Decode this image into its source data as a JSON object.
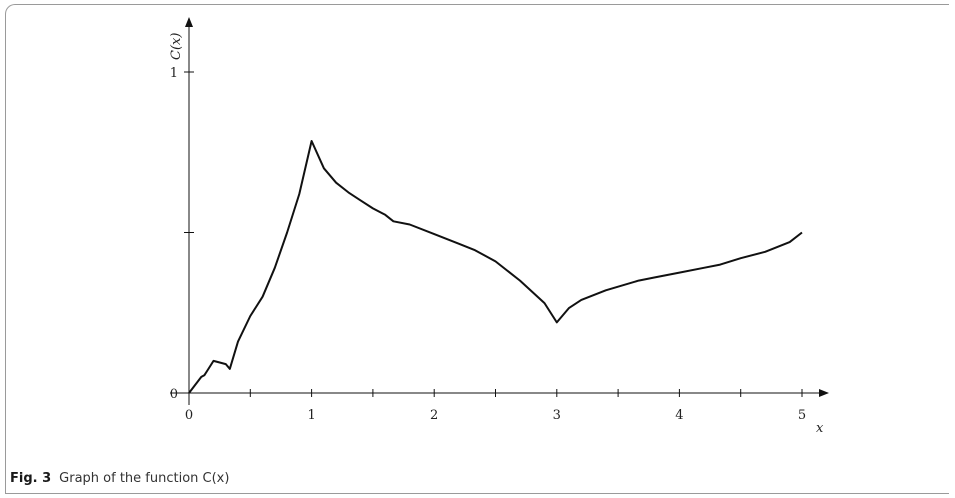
{
  "caption": {
    "figure_number": "Fig. 3",
    "text": "Graph of the function C(x)"
  },
  "chart_data": {
    "type": "line",
    "title": "",
    "xlabel": "x",
    "ylabel": "C(x)",
    "xlim": [
      0,
      5
    ],
    "ylim": [
      0,
      1
    ],
    "x_ticks": [
      0,
      0.5,
      1,
      1.5,
      2,
      2.5,
      3,
      3.5,
      4,
      4.5,
      5
    ],
    "x_tick_labels": [
      "0",
      "",
      "1",
      "",
      "2",
      "",
      "3",
      "",
      "4",
      "",
      "5"
    ],
    "y_ticks": [
      0,
      0.5,
      1
    ],
    "y_tick_labels": [
      "0",
      "",
      "1"
    ],
    "grid": false,
    "series": [
      {
        "x": [
          0,
          0.05,
          0.1,
          0.125,
          0.15,
          0.2,
          0.25,
          0.3,
          0.333,
          0.4,
          0.5,
          0.6,
          0.7,
          0.8,
          0.9,
          1.0,
          1.1,
          1.2,
          1.3,
          1.4,
          1.5,
          1.6,
          1.667,
          1.8,
          2.0,
          2.2,
          2.333,
          2.5,
          2.7,
          2.9,
          3.0,
          3.1,
          3.2,
          3.4,
          3.667,
          3.8,
          4.0,
          4.2,
          4.333,
          4.5,
          4.7,
          4.9,
          5.0
        ],
        "y": [
          0,
          0.025,
          0.05,
          0.055,
          0.07,
          0.1,
          0.095,
          0.09,
          0.075,
          0.16,
          0.24,
          0.3,
          0.39,
          0.5,
          0.62,
          0.785,
          0.7,
          0.655,
          0.625,
          0.6,
          0.575,
          0.555,
          0.535,
          0.525,
          0.495,
          0.465,
          0.445,
          0.41,
          0.35,
          0.28,
          0.22,
          0.265,
          0.29,
          0.32,
          0.35,
          0.36,
          0.375,
          0.39,
          0.4,
          0.42,
          0.44,
          0.47,
          0.5
        ]
      }
    ]
  }
}
